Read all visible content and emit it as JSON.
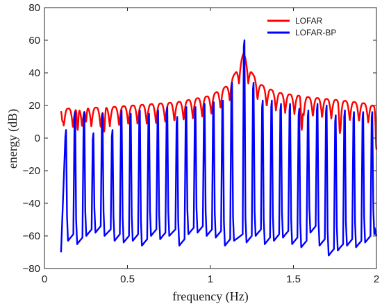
{
  "chart_data": {
    "type": "line",
    "title": "",
    "xlabel": "frequency (Hz)",
    "ylabel": "energy (dB)",
    "xlim": [
      0,
      2
    ],
    "ylim": [
      -80,
      80
    ],
    "xticks": [
      0,
      0.5,
      1,
      1.5,
      2
    ],
    "xtick_labels": [
      "0",
      "0.5",
      "1",
      "1.5",
      "2"
    ],
    "yticks": [
      -80,
      -60,
      -40,
      -20,
      0,
      20,
      40,
      60,
      80
    ],
    "ytick_labels": [
      "−80",
      "−60",
      "−40",
      "−20",
      "0",
      "20",
      "40",
      "60",
      "80"
    ],
    "grid": false,
    "legend_position": "top-right",
    "lobe_spacing_hz": 0.0556,
    "series": [
      {
        "name": "LOFAR",
        "color": "#ff0000",
        "x_range": [
          0.1,
          2.0
        ],
        "peak": {
          "x": 1.2,
          "y": 52
        },
        "envelope_x": [
          0.1,
          0.4,
          0.8,
          1.0,
          1.1,
          1.15,
          1.2,
          1.25,
          1.3,
          1.4,
          1.6,
          1.8,
          1.95,
          2.0
        ],
        "envelope_y": [
          18,
          19,
          22,
          26,
          32,
          40,
          52,
          40,
          33,
          28,
          25,
          23,
          21,
          19
        ],
        "valley_depth_db": 12,
        "deep_valleys": [
          {
            "x": 0.11,
            "y": 10
          },
          {
            "x": 0.2,
            "y": 5
          },
          {
            "x": 0.25,
            "y": 10
          },
          {
            "x": 0.36,
            "y": 4
          },
          {
            "x": 1.55,
            "y": 5
          },
          {
            "x": 1.78,
            "y": 3
          },
          {
            "x": 2.0,
            "y": -7
          }
        ]
      },
      {
        "name": "LOFAR-BP",
        "color": "#0000ff",
        "x_range": [
          0.1,
          2.0
        ],
        "peak": {
          "x": 1.205,
          "y": 60
        },
        "peak_x": [
          0.13,
          0.185,
          0.24,
          0.295,
          0.35,
          0.41,
          0.465,
          0.52,
          0.575,
          0.63,
          0.685,
          0.74,
          0.8,
          0.855,
          0.91,
          0.965,
          1.02,
          1.075,
          1.13,
          1.205,
          1.26,
          1.315,
          1.37,
          1.425,
          1.48,
          1.535,
          1.59,
          1.645,
          1.7,
          1.755,
          1.81,
          1.865,
          1.92,
          1.975
        ],
        "peak_y": [
          5,
          16,
          16,
          3,
          15,
          5,
          17,
          15,
          17,
          15,
          17,
          19,
          13,
          19,
          19,
          21,
          22,
          23,
          34,
          60,
          34,
          23,
          23,
          21,
          21,
          18,
          17,
          21,
          20,
          14,
          17,
          16,
          16,
          16
        ],
        "floor_y": [
          -63,
          -65,
          -60,
          -58,
          -60,
          -63,
          -64,
          -63,
          -66,
          -60,
          -62,
          -60,
          -66,
          -59,
          -58,
          -60,
          -61,
          -66,
          -63,
          -64,
          -60,
          -65,
          -63,
          -61,
          -65,
          -67,
          -58,
          -66,
          -72,
          -69,
          -66,
          -67,
          -64,
          -59
        ],
        "start": {
          "x": 0.1,
          "y": -70
        },
        "end": {
          "x": 2.0,
          "y": -60
        }
      }
    ]
  }
}
